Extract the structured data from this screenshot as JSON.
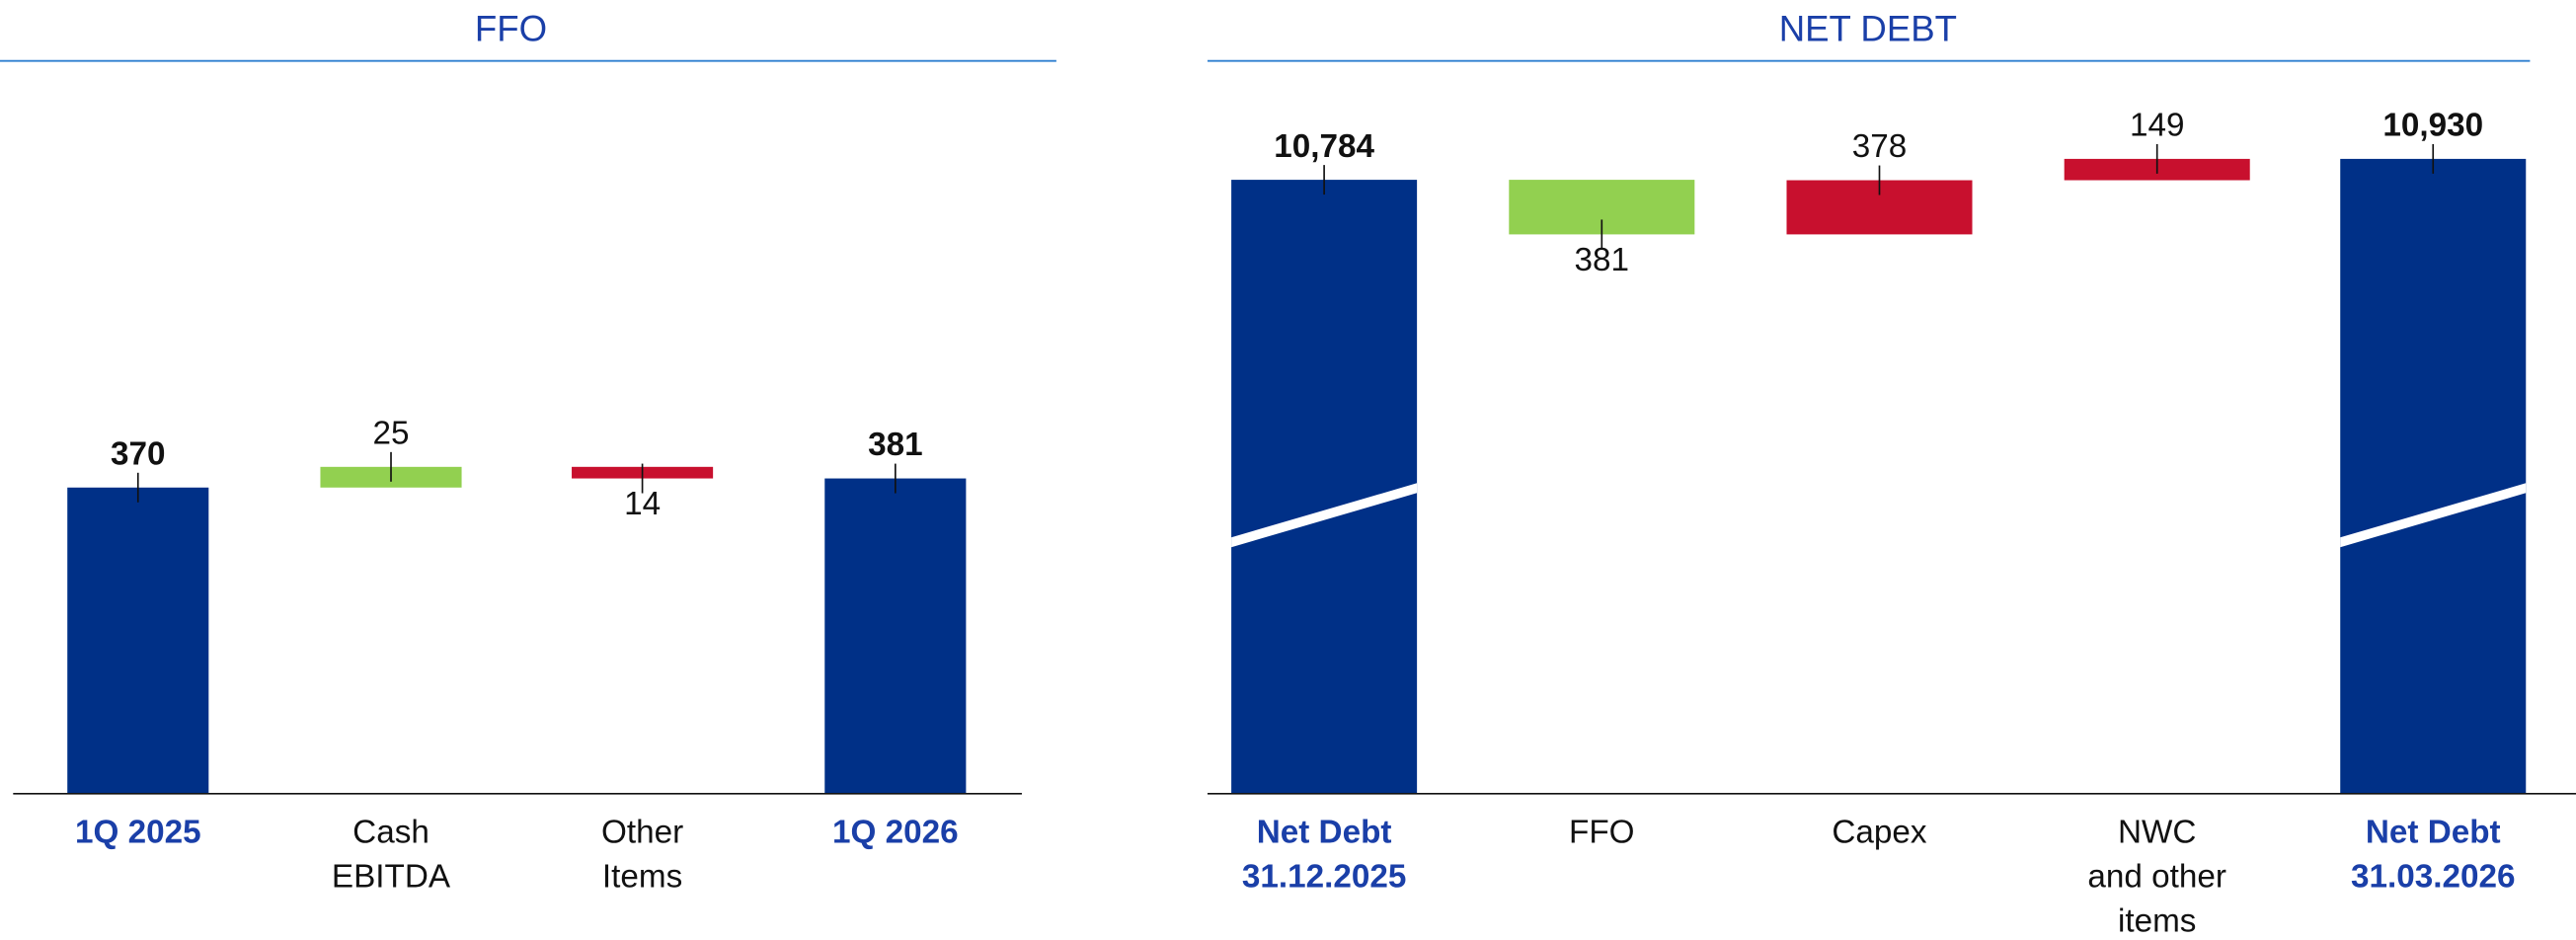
{
  "chart_data": [
    {
      "type": "waterfall",
      "title": "FFO",
      "categories": [
        "1Q 2025",
        "Cash\nEBITDA",
        "Other\nItems",
        "1Q 2026"
      ],
      "measures": [
        "total",
        "relative",
        "relative",
        "total"
      ],
      "values": [
        370,
        25,
        -14,
        381
      ],
      "value_labels": [
        "370",
        "25",
        "14",
        "381"
      ],
      "colors": [
        "#003087",
        "#92d050",
        "#c8102e",
        "#003087"
      ],
      "ylim": [
        0,
        840
      ]
    },
    {
      "type": "waterfall",
      "title": "NET DEBT",
      "categories": [
        "Net Debt\n31.12.2025",
        "FFO",
        "Capex",
        "NWC\nand other\nitems",
        "Net Debt\n31.03.2026"
      ],
      "measures": [
        "total",
        "relative",
        "relative",
        "relative",
        "total"
      ],
      "values": [
        10784,
        -381,
        378,
        149,
        10930
      ],
      "value_labels": [
        "10,784",
        "381",
        "378",
        "149",
        "10,930"
      ],
      "colors": [
        "#003087",
        "#92d050",
        "#c8102e",
        "#c8102e",
        "#003087"
      ],
      "ylim": [
        6500,
        11350
      ],
      "axis_break": true
    }
  ]
}
